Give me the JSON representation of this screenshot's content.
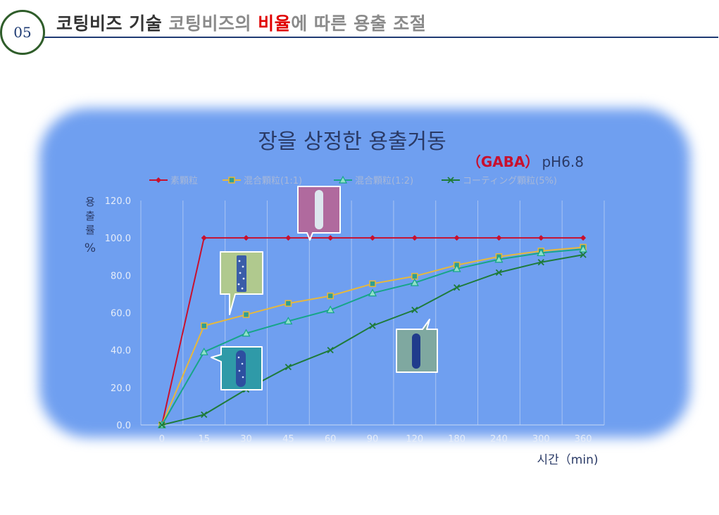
{
  "header": {
    "slide_number": "05",
    "title_part1": "코팅비즈 기술",
    "title_part2": "코팅비즈의",
    "title_part3": "비율",
    "title_part4": "에 따른 용출 조절"
  },
  "colors": {
    "title_red": "#e00000",
    "series1": "#c8102e",
    "series2": "#e7b83c",
    "series3": "#17a589",
    "series4": "#1e7b3a",
    "chart_bg": "#6f9ff0"
  },
  "chart_data": {
    "type": "line",
    "title": "장을 상정한 용출거동",
    "subtitle_red": "（GABA）",
    "subtitle_rest": "pH6.8",
    "xlabel": "시간（min)",
    "ylabel_chars": [
      "용",
      "출",
      "률"
    ],
    "ylabel_unit": "%",
    "categories": [
      "0",
      "15",
      "30",
      "45",
      "60",
      "90",
      "120",
      "180",
      "240",
      "300",
      "360"
    ],
    "y_ticks": [
      "0.0",
      "20.0",
      "40.0",
      "60.0",
      "80.0",
      "100.0",
      "120.0"
    ],
    "ylim": [
      0,
      120
    ],
    "grid": "vertical",
    "legend_position": "top",
    "series": [
      {
        "name": "素顆粒",
        "marker": "diamond",
        "values": [
          0,
          100,
          100,
          100,
          100,
          100,
          100,
          100,
          100,
          100,
          100
        ]
      },
      {
        "name": "混合顆粒(1:1)",
        "marker": "square",
        "values": [
          0,
          53,
          59,
          65,
          69,
          75.5,
          79.5,
          85.5,
          90,
          93,
          95
        ]
      },
      {
        "name": "混合顆粒(1:2)",
        "marker": "triangle",
        "values": [
          0,
          39,
          49,
          55.5,
          61.5,
          70.5,
          76,
          83.5,
          88.5,
          92,
          94
        ]
      },
      {
        "name": "コーティング顆粒(5%)",
        "marker": "x",
        "values": [
          0,
          5.5,
          19,
          31,
          40,
          53,
          61.5,
          73.5,
          81.5,
          87,
          91
        ]
      }
    ]
  },
  "callouts": [
    {
      "id": "callout-plain-bead-image",
      "fill": "#b06a9e",
      "bead": "#dde6ee"
    },
    {
      "id": "callout-mixed-1-1-image",
      "fill": "#b0c98e",
      "bead": "#3a5da8"
    },
    {
      "id": "callout-mixed-1-2-image",
      "fill": "#2f9aa8",
      "bead": "#2d4fa0"
    },
    {
      "id": "callout-coated-image",
      "fill": "#7fa8a0",
      "bead": "#203c8c"
    }
  ]
}
